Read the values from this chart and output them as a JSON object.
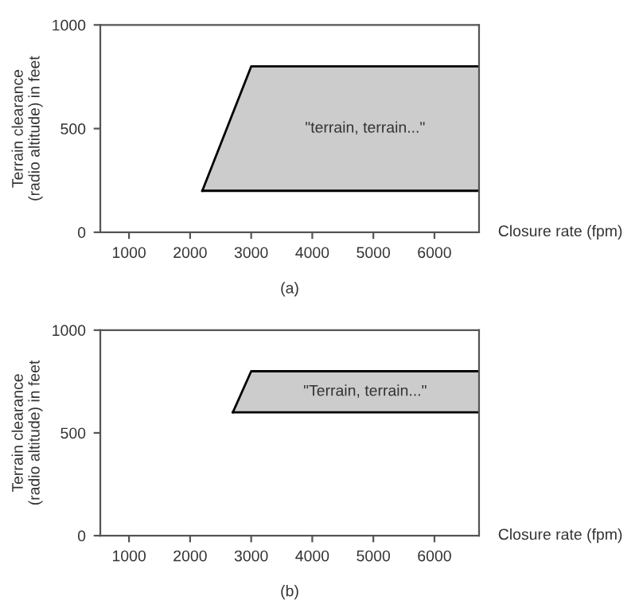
{
  "chart_data": [
    {
      "type": "area",
      "stacked": true,
      "xlabel": "Closure rate (fpm)",
      "ylabel": "Terrain clearance\n(radio altitude) in feet",
      "x": [
        2200,
        3000,
        6730
      ],
      "series": [
        {
          "color": "#ffffff",
          "values": [
            200,
            200,
            200
          ]
        },
        {
          "color": "#cccccc",
          "values": [
            0,
            600,
            600
          ]
        }
      ],
      "xlim": [
        530,
        6730
      ],
      "ylim": [
        0,
        1000
      ],
      "xticks": [
        1000,
        2000,
        3000,
        4000,
        5000,
        6000
      ],
      "yticks": [
        0,
        500,
        1000
      ],
      "grid": false,
      "legend": false,
      "annotations": [
        "\"terrain, terrain...\"",
        "(a)"
      ]
    },
    {
      "type": "area",
      "stacked": true,
      "xlabel": "Closure rate (fpm)",
      "ylabel": "Terrain clearance\n(radio altitude) in feet",
      "x": [
        2700,
        3000,
        6730
      ],
      "series": [
        {
          "color": "#ffffff",
          "values": [
            600,
            600,
            600
          ]
        },
        {
          "color": "#cccccc",
          "values": [
            0,
            200,
            200
          ]
        }
      ],
      "xlim": [
        530,
        6730
      ],
      "ylim": [
        0,
        1000
      ],
      "xticks": [
        1000,
        2000,
        3000,
        4000,
        5000,
        6000
      ],
      "yticks": [
        0,
        500,
        1000
      ],
      "grid": false,
      "legend": false,
      "annotations": [
        "\"Terrain, terrain...\"",
        "(b)"
      ]
    }
  ]
}
